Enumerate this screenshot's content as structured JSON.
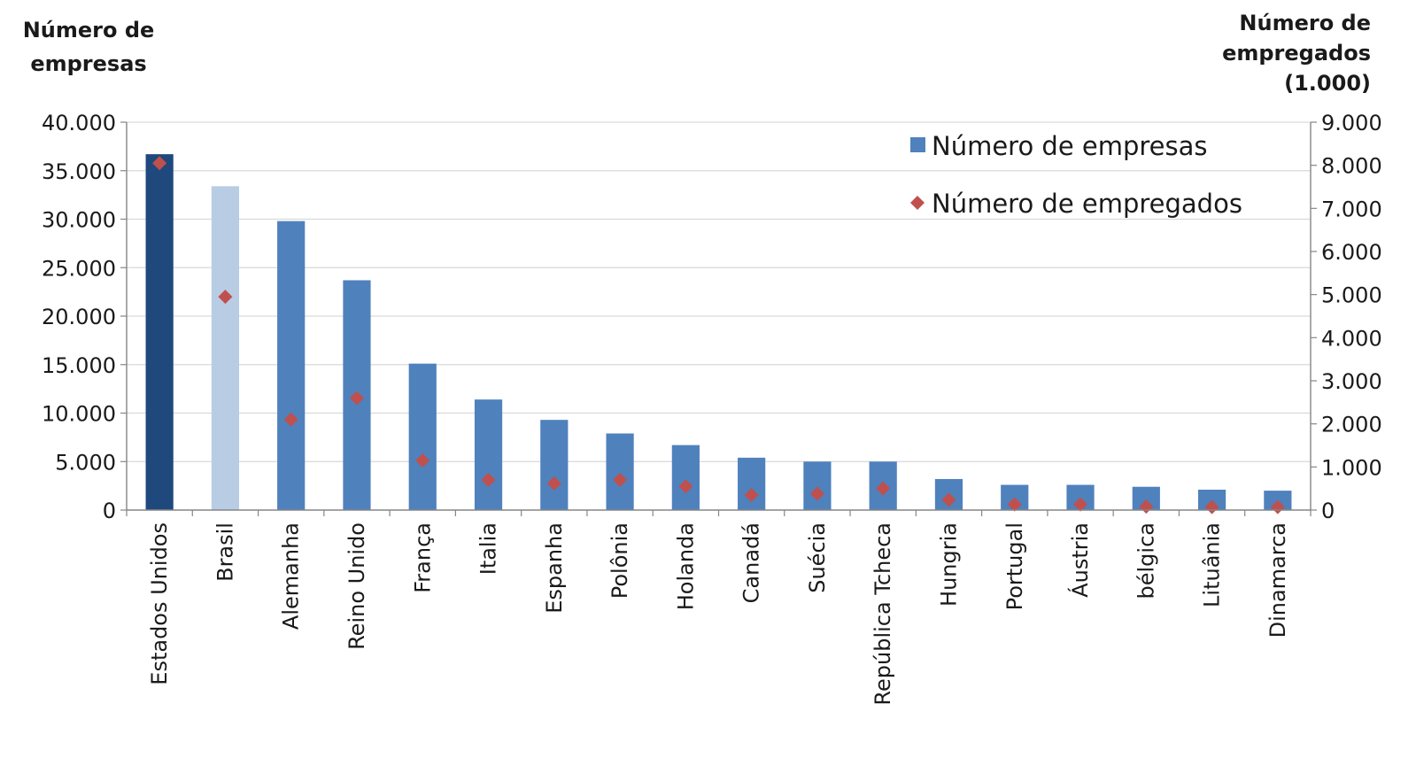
{
  "chart_data": {
    "type": "bar",
    "categories": [
      "Estados Unidos",
      "Brasil",
      "Alemanha",
      "Reino Unido",
      "França",
      "Italia",
      "Espanha",
      "Polônia",
      "Holanda",
      "Canadá",
      "Suécia",
      "República Tcheca",
      "Hungria",
      "Portugal",
      "Áustria",
      "bélgica",
      "Lituânia",
      "Dinamarca"
    ],
    "series": [
      {
        "name": "Número de empresas",
        "kind": "bar",
        "axis": "left",
        "values": [
          36700,
          33400,
          29800,
          23700,
          15100,
          11400,
          9300,
          7900,
          6700,
          5400,
          5000,
          5000,
          3200,
          2600,
          2600,
          2400,
          2100,
          2000
        ],
        "colors": [
          "#1F497D",
          "#B8CCE4",
          "#4F81BD",
          "#4F81BD",
          "#4F81BD",
          "#4F81BD",
          "#4F81BD",
          "#4F81BD",
          "#4F81BD",
          "#4F81BD",
          "#4F81BD",
          "#4F81BD",
          "#4F81BD",
          "#4F81BD",
          "#4F81BD",
          "#4F81BD",
          "#4F81BD",
          "#4F81BD"
        ]
      },
      {
        "name": "Número de empregados",
        "kind": "marker",
        "axis": "right",
        "marker": "diamond",
        "color": "#C0504D",
        "values": [
          8050,
          4950,
          2100,
          2600,
          1150,
          700,
          620,
          700,
          550,
          350,
          380,
          500,
          240,
          130,
          130,
          80,
          70,
          70
        ]
      }
    ],
    "y_left": {
      "title_lines": [
        "Número de",
        "empresas"
      ],
      "ticks": [
        "0",
        "5.000",
        "10.000",
        "15.000",
        "20.000",
        "25.000",
        "30.000",
        "35.000",
        "40.000"
      ],
      "ylim": [
        0,
        40000
      ]
    },
    "y_right": {
      "title_lines": [
        "Número de",
        "empregados",
        "(1.000)"
      ],
      "ticks": [
        "0",
        "1.000",
        "2.000",
        "3.000",
        "4.000",
        "5.000",
        "6.000",
        "7.000",
        "8.000",
        "9.000"
      ],
      "ylim": [
        0,
        9000
      ]
    },
    "grid": true,
    "legend": {
      "position": "top-right",
      "items": [
        "Número de empresas",
        "Número de empregados"
      ]
    },
    "colors": {
      "grid": "#D9D9D9",
      "axis": "#868686",
      "text": "#1a1a1a"
    }
  }
}
